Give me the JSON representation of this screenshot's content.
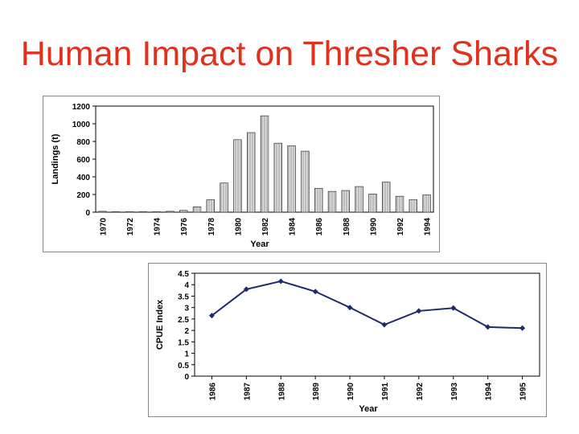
{
  "slide": {
    "title": "Human Impact on Thresher Sharks"
  },
  "chart_data": [
    {
      "type": "bar",
      "xlabel": "Year",
      "ylabel": "Landings (t)",
      "ylim": [
        0,
        1200
      ],
      "yticks": [
        "0",
        "200",
        "400",
        "600",
        "800",
        "1000",
        "1200"
      ],
      "xtick_labels": [
        "1970",
        "1972",
        "1974",
        "1976",
        "1978",
        "1980",
        "1982",
        "1984",
        "1986",
        "1988",
        "1990",
        "1992",
        "1994"
      ],
      "categories": [
        "1970",
        "1971",
        "1972",
        "1973",
        "1974",
        "1975",
        "1976",
        "1977",
        "1978",
        "1979",
        "1980",
        "1981",
        "1982",
        "1983",
        "1984",
        "1985",
        "1986",
        "1987",
        "1988",
        "1989",
        "1990",
        "1991",
        "1992",
        "1993",
        "1994"
      ],
      "values": [
        10,
        5,
        5,
        5,
        5,
        10,
        20,
        60,
        140,
        330,
        820,
        900,
        1090,
        780,
        750,
        690,
        270,
        235,
        245,
        290,
        205,
        340,
        180,
        140,
        195
      ],
      "grid": false,
      "bar_color": "#bdbdbd"
    },
    {
      "type": "line",
      "xlabel": "Year",
      "ylabel": "CPUE Index",
      "ylim": [
        0,
        4.5
      ],
      "yticks": [
        "0",
        "0.5",
        "1",
        "1.5",
        "2",
        "2.5",
        "3",
        "3.5",
        "4",
        "4.5"
      ],
      "x": [
        "1986",
        "1987",
        "1988",
        "1989",
        "1990",
        "1991",
        "1992",
        "1993",
        "1994",
        "1995"
      ],
      "values": [
        2.65,
        3.8,
        4.15,
        3.7,
        3.0,
        2.25,
        2.85,
        2.98,
        2.15,
        2.1
      ],
      "grid": false,
      "line_color": "#1f2a6b"
    }
  ]
}
